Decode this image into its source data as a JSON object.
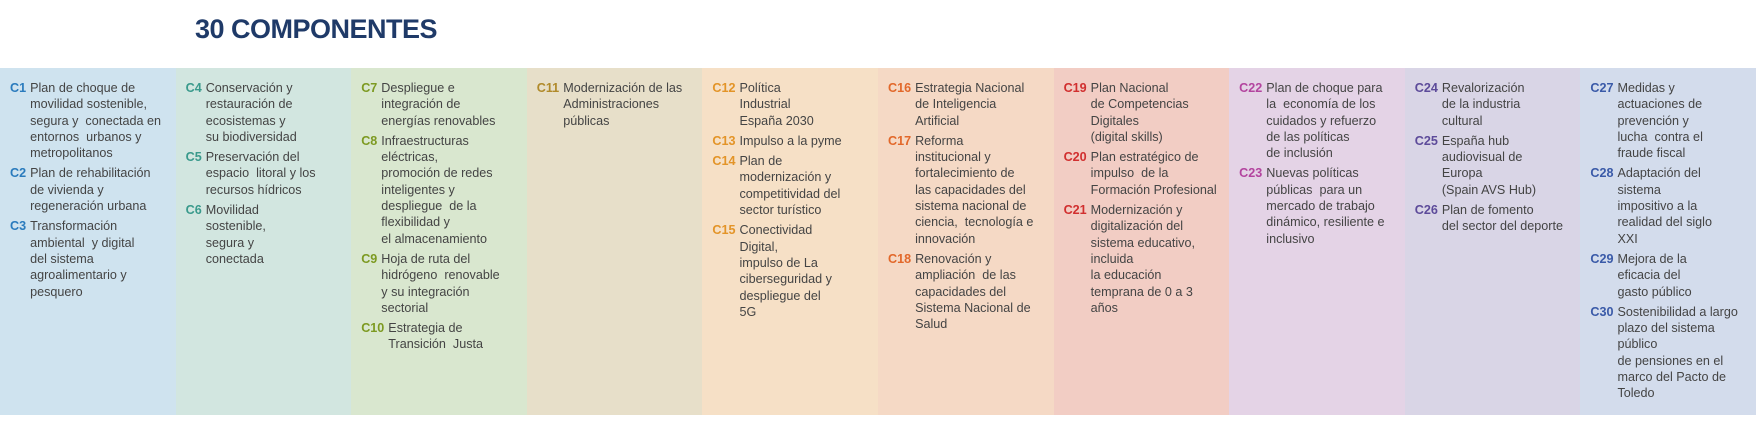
{
  "header": {
    "title": "30 COMPONENTES"
  },
  "columns": [
    {
      "items": [
        {
          "code": "C1",
          "lines": [
            "Plan de choque de",
            "movilidad sostenible,",
            "segura y  conectada en",
            "entornos  urbanos y",
            "metropolitanos"
          ]
        },
        {
          "code": "C2",
          "lines": [
            "Plan de rehabilitación",
            "de vivienda y",
            "regeneración urbana"
          ]
        },
        {
          "code": "C3",
          "lines": [
            "Transformación",
            "ambiental  y digital",
            "del sistema",
            "agroalimentario y",
            "pesquero"
          ]
        }
      ]
    },
    {
      "items": [
        {
          "code": "C4",
          "lines": [
            "Conservación y",
            "restauración de",
            "ecosistemas y",
            "su biodiversidad"
          ]
        },
        {
          "code": "C5",
          "lines": [
            "Preservación del",
            "espacio  litoral y los",
            "recursos hídricos"
          ]
        },
        {
          "code": "C6",
          "lines": [
            "Movilidad",
            "sostenible,",
            "segura y",
            "conectada"
          ]
        }
      ]
    },
    {
      "items": [
        {
          "code": "C7",
          "lines": [
            "Despliegue e",
            "integración de",
            "energías renovables"
          ]
        },
        {
          "code": "C8",
          "lines": [
            "Infraestructuras",
            "eléctricas,",
            "promoción de redes",
            "inteligentes y",
            "despliegue  de la",
            "flexibilidad y",
            "el almacenamiento"
          ]
        },
        {
          "code": "C9",
          "lines": [
            "Hoja de ruta del",
            "hidrógeno  renovable",
            "y su integración",
            "sectorial"
          ]
        },
        {
          "code": "C10",
          "lines": [
            "Estrategia de",
            "Transición  Justa"
          ]
        }
      ]
    },
    {
      "items": [
        {
          "code": "C11",
          "lines": [
            "Modernización de las",
            "Administraciones",
            "públicas"
          ]
        }
      ]
    },
    {
      "items": [
        {
          "code": "C12",
          "lines": [
            "Política",
            "Industrial",
            "España 2030"
          ]
        },
        {
          "code": "C13",
          "lines": [
            "Impulso a la pyme"
          ]
        },
        {
          "code": "C14",
          "lines": [
            "Plan de",
            "modernización y",
            "competitividad del",
            "sector turístico"
          ]
        },
        {
          "code": "C15",
          "lines": [
            "Conectividad",
            "Digital,",
            "impulso de La",
            "ciberseguridad y",
            "despliegue del",
            "5G"
          ]
        }
      ]
    },
    {
      "items": [
        {
          "code": "C16",
          "lines": [
            "Estrategia Nacional",
            "de Inteligencia",
            "Artificial"
          ]
        },
        {
          "code": "C17",
          "lines": [
            "Reforma",
            "institucional y",
            "fortalecimiento de",
            "las capacidades del",
            "sistema nacional de",
            "ciencia,  tecnología e",
            "innovación"
          ]
        },
        {
          "code": "C18",
          "lines": [
            "Renovación y",
            "ampliación  de las",
            "capacidades del",
            "Sistema Nacional de",
            "Salud"
          ]
        }
      ]
    },
    {
      "items": [
        {
          "code": "C19",
          "lines": [
            "Plan Nacional",
            "de Competencias",
            "Digitales",
            "(digital skills)"
          ]
        },
        {
          "code": "C20",
          "lines": [
            "Plan estratégico de",
            "impulso  de la",
            "Formación Profesional"
          ]
        },
        {
          "code": "C21",
          "lines": [
            "Modernización y",
            "digitalización del",
            "sistema educativo,",
            "incluida",
            "la educación",
            "temprana de 0 a 3",
            "años"
          ]
        }
      ]
    },
    {
      "items": [
        {
          "code": "C22",
          "lines": [
            "Plan de choque para",
            "la  economía de los",
            "cuidados y refuerzo",
            "de las políticas",
            "de inclusión"
          ]
        },
        {
          "code": "C23",
          "lines": [
            "Nuevas políticas",
            "públicas  para un",
            "mercado de trabajo",
            "dinámico, resiliente e",
            "inclusivo"
          ]
        }
      ]
    },
    {
      "items": [
        {
          "code": "C24",
          "lines": [
            "Revalorización",
            "de la industria",
            "cultural"
          ]
        },
        {
          "code": "C25",
          "lines": [
            "España hub",
            "audiovisual de",
            "Europa",
            "(Spain AVS Hub)"
          ]
        },
        {
          "code": "C26",
          "lines": [
            "Plan de fomento",
            "del sector del deporte"
          ]
        }
      ]
    },
    {
      "items": [
        {
          "code": "C27",
          "lines": [
            "Medidas y",
            "actuaciones de",
            "prevención y",
            "lucha  contra el",
            "fraude fiscal"
          ]
        },
        {
          "code": "C28",
          "lines": [
            "Adaptación del",
            "sistema",
            "impositivo a la",
            "realidad del siglo",
            "XXI"
          ]
        },
        {
          "code": "C29",
          "lines": [
            "Mejora de la",
            "eficacia del",
            "gasto público"
          ]
        },
        {
          "code": "C30",
          "lines": [
            "Sostenibilidad a largo",
            "plazo del sistema",
            "público",
            "de pensiones en el",
            "marco del Pacto de",
            "Toledo"
          ]
        }
      ]
    }
  ]
}
